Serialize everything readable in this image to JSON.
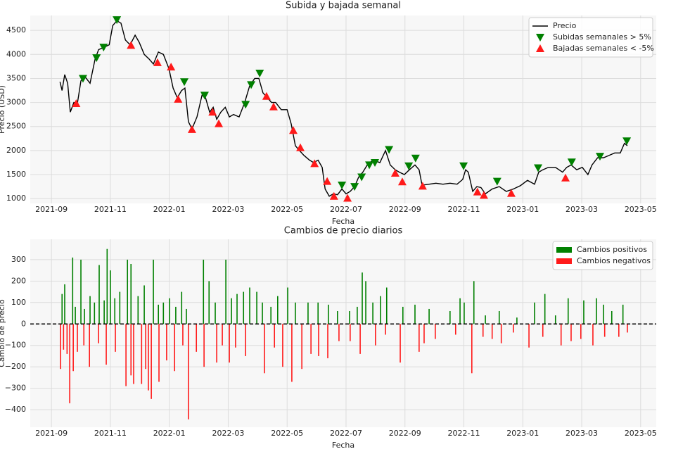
{
  "chart_data": [
    {
      "type": "line",
      "title": "Subida y bajada semanal",
      "xlabel": "Fecha",
      "ylabel": "Precio (USD)",
      "xlim": [
        -0.72,
        20.53
      ],
      "ylim": [
        900,
        4810
      ],
      "grid": true,
      "legend": "upper right",
      "xticks": [
        {
          "value": 0,
          "label": "2021-09"
        },
        {
          "value": 2,
          "label": "2021-11"
        },
        {
          "value": 4,
          "label": "2022-01"
        },
        {
          "value": 6,
          "label": "2022-03"
        },
        {
          "value": 8,
          "label": "2022-05"
        },
        {
          "value": 10,
          "label": "2022-07"
        },
        {
          "value": 12,
          "label": "2022-09"
        },
        {
          "value": 14,
          "label": "2022-11"
        },
        {
          "value": 16,
          "label": "2023-01"
        },
        {
          "value": 18,
          "label": "2023-03"
        },
        {
          "value": 20,
          "label": "2023-05"
        }
      ],
      "yticks": [
        1000,
        1500,
        2000,
        2500,
        3000,
        3500,
        4000,
        4500
      ],
      "series": [
        {
          "name": "Precio",
          "color": "#000000",
          "marker": "line",
          "x": [
            0.29,
            0.36,
            0.45,
            0.55,
            0.64,
            0.76,
            0.88,
            1.0,
            1.12,
            1.31,
            1.48,
            1.6,
            1.79,
            1.96,
            2.08,
            2.22,
            2.36,
            2.51,
            2.67,
            2.84,
            2.98,
            3.15,
            3.32,
            3.46,
            3.63,
            3.8,
            3.99,
            4.13,
            4.27,
            4.42,
            4.53,
            4.65,
            4.77,
            4.94,
            5.11,
            5.23,
            5.37,
            5.49,
            5.61,
            5.75,
            5.9,
            6.04,
            6.18,
            6.37,
            6.56,
            6.73,
            6.9,
            7.04,
            7.18,
            7.33,
            7.47,
            7.61,
            7.8,
            8.0,
            8.14,
            8.28,
            8.42,
            8.57,
            8.76,
            8.9,
            9.05,
            9.19,
            9.29,
            9.43,
            9.57,
            9.71,
            9.86,
            10.0,
            10.14,
            10.29,
            10.43,
            10.57,
            10.72,
            10.91,
            11.15,
            11.34,
            11.5,
            11.67,
            11.81,
            11.98,
            12.15,
            12.34,
            12.48,
            12.58,
            12.82,
            13.05,
            13.29,
            13.53,
            13.77,
            13.96,
            14.06,
            14.15,
            14.3,
            14.44,
            14.58,
            14.73,
            14.96,
            15.2,
            15.44,
            15.68,
            15.92,
            16.16,
            16.4,
            16.54,
            16.68,
            16.87,
            17.11,
            17.35,
            17.49,
            17.64,
            17.83,
            18.02,
            18.21,
            18.35,
            18.54,
            18.74,
            18.93,
            19.12,
            19.31,
            19.45,
            19.55
          ],
          "values": [
            3430,
            3250,
            3580,
            3400,
            2800,
            3000,
            2980,
            3450,
            3550,
            3400,
            3900,
            4100,
            4150,
            4200,
            4600,
            4700,
            4650,
            4300,
            4200,
            4400,
            4250,
            4000,
            3900,
            3800,
            4050,
            4000,
            3700,
            3300,
            3100,
            3250,
            3300,
            2600,
            2450,
            2700,
            3150,
            3100,
            2800,
            2900,
            2650,
            2800,
            2900,
            2700,
            2750,
            2700,
            3000,
            3350,
            3500,
            3500,
            3200,
            3100,
            3000,
            3000,
            2850,
            2850,
            2550,
            2100,
            2000,
            1900,
            1800,
            1750,
            1800,
            1650,
            1200,
            1050,
            1100,
            1080,
            1200,
            1100,
            1150,
            1250,
            1450,
            1550,
            1700,
            1800,
            1750,
            2000,
            1700,
            1600,
            1550,
            1500,
            1600,
            1700,
            1600,
            1280,
            1300,
            1320,
            1300,
            1320,
            1300,
            1400,
            1600,
            1550,
            1150,
            1250,
            1230,
            1100,
            1200,
            1250,
            1150,
            1200,
            1270,
            1380,
            1300,
            1550,
            1600,
            1650,
            1650,
            1550,
            1650,
            1700,
            1600,
            1650,
            1500,
            1700,
            1850,
            1850,
            1900,
            1950,
            1950,
            2150,
            2100
          ]
        },
        {
          "name": "Subidas semanales > 5%",
          "color": "#008000",
          "marker": "triangle-down",
          "x": [
            1.07,
            1.53,
            1.77,
            2.22,
            4.51,
            5.2,
            6.59,
            6.78,
            7.07,
            9.86,
            10.29,
            10.53,
            10.79,
            10.98,
            11.46,
            12.13,
            12.36,
            13.99,
            15.13,
            16.52,
            17.66,
            18.62,
            19.53
          ],
          "values": [
            3500,
            3930,
            4150,
            4720,
            3430,
            3150,
            2960,
            3370,
            3610,
            1280,
            1250,
            1450,
            1700,
            1750,
            2020,
            1680,
            1840,
            1680,
            1360,
            1640,
            1760,
            1880,
            2200
          ]
        },
        {
          "name": "Bajadas semanales < -5%",
          "color": "#ff1a1a",
          "marker": "triangle-up",
          "x": [
            0.84,
            2.7,
            3.6,
            4.06,
            4.3,
            4.77,
            5.47,
            5.68,
            7.3,
            7.54,
            8.21,
            8.45,
            8.93,
            9.36,
            9.59,
            10.05,
            11.67,
            11.91,
            12.6,
            14.46,
            14.68,
            15.61,
            17.45
          ],
          "values": [
            2980,
            4190,
            3830,
            3740,
            3070,
            2440,
            2800,
            2560,
            3130,
            2910,
            2420,
            2060,
            1730,
            1360,
            1050,
            1010,
            1530,
            1350,
            1260,
            1140,
            1070,
            1110,
            1430
          ]
        }
      ]
    },
    {
      "type": "bar",
      "title": "Cambios de precio diarios",
      "xlabel": "Fecha",
      "ylabel": "Cambio de precio",
      "xlim": [
        -0.72,
        20.53
      ],
      "ylim": [
        -482,
        395
      ],
      "grid": true,
      "legend": "upper right",
      "zero_line": 0,
      "xticks": [
        {
          "value": 0,
          "label": "2021-09"
        },
        {
          "value": 2,
          "label": "2021-11"
        },
        {
          "value": 4,
          "label": "2022-01"
        },
        {
          "value": 6,
          "label": "2022-03"
        },
        {
          "value": 8,
          "label": "2022-05"
        },
        {
          "value": 10,
          "label": "2022-07"
        },
        {
          "value": 12,
          "label": "2022-09"
        },
        {
          "value": 14,
          "label": "2022-11"
        },
        {
          "value": 16,
          "label": "2023-01"
        },
        {
          "value": 18,
          "label": "2023-03"
        },
        {
          "value": 20,
          "label": "2023-05"
        }
      ],
      "yticks": [
        {
          "value": -400,
          "label": "−400"
        },
        {
          "value": -300,
          "label": "−300"
        },
        {
          "value": -200,
          "label": "−200"
        },
        {
          "value": -100,
          "label": "−100"
        },
        0,
        100,
        200,
        300
      ],
      "series": [
        {
          "name": "Cambios positivos",
          "color": "#008000",
          "x": [
            0.36,
            0.45,
            0.72,
            0.81,
            1.0,
            1.12,
            1.31,
            1.46,
            1.62,
            1.79,
            1.89,
            2.0,
            2.15,
            2.32,
            2.58,
            2.7,
            2.94,
            3.15,
            3.46,
            3.63,
            3.8,
            4.01,
            4.22,
            4.42,
            4.58,
            5.16,
            5.35,
            5.56,
            5.92,
            6.11,
            6.3,
            6.52,
            6.73,
            6.97,
            7.16,
            7.45,
            7.68,
            8.02,
            8.28,
            8.71,
            9.05,
            9.4,
            9.71,
            10.12,
            10.38,
            10.55,
            10.67,
            10.91,
            11.17,
            11.38,
            11.93,
            12.34,
            12.82,
            13.53,
            13.87,
            14.01,
            14.34,
            14.73,
            15.2,
            15.8,
            16.4,
            16.75,
            17.11,
            17.54,
            18.07,
            18.5,
            18.74,
            19.02,
            19.4
          ],
          "values": [
            140,
            185,
            310,
            80,
            300,
            70,
            130,
            100,
            275,
            110,
            350,
            250,
            120,
            150,
            300,
            280,
            130,
            180,
            300,
            90,
            100,
            120,
            80,
            150,
            70,
            300,
            200,
            100,
            300,
            120,
            140,
            150,
            170,
            150,
            100,
            80,
            130,
            170,
            100,
            100,
            100,
            90,
            60,
            60,
            80,
            240,
            200,
            100,
            130,
            170,
            80,
            90,
            70,
            60,
            120,
            100,
            200,
            40,
            60,
            30,
            100,
            140,
            40,
            120,
            110,
            120,
            90,
            60,
            90
          ]
        },
        {
          "name": "Cambios negativos",
          "color": "#ff1a1a",
          "x": [
            0.31,
            0.41,
            0.53,
            0.62,
            0.74,
            0.88,
            1.1,
            1.29,
            1.6,
            1.86,
            2.17,
            2.53,
            2.7,
            2.79,
            3.06,
            3.2,
            3.29,
            3.39,
            3.65,
            3.91,
            4.18,
            4.46,
            4.65,
            4.92,
            5.18,
            5.61,
            5.8,
            6.04,
            6.25,
            6.59,
            7.23,
            7.57,
            7.85,
            8.16,
            8.5,
            8.81,
            9.07,
            9.38,
            9.76,
            10.14,
            10.48,
            11.0,
            11.34,
            11.84,
            12.48,
            12.65,
            13.03,
            13.72,
            14.27,
            14.65,
            14.96,
            15.27,
            15.68,
            16.21,
            16.68,
            17.3,
            17.64,
            17.97,
            18.38,
            18.78,
            19.26,
            19.55
          ],
          "values": [
            -210,
            -120,
            -140,
            -370,
            -220,
            -130,
            -100,
            -200,
            -90,
            -190,
            -130,
            -290,
            -240,
            -280,
            -280,
            -210,
            -310,
            -350,
            -270,
            -170,
            -220,
            -100,
            -445,
            -130,
            -200,
            -180,
            -100,
            -180,
            -110,
            -150,
            -230,
            -110,
            -200,
            -270,
            -210,
            -140,
            -150,
            -160,
            -80,
            -80,
            -140,
            -100,
            -50,
            -180,
            -130,
            -90,
            -70,
            -50,
            -230,
            -60,
            -70,
            -90,
            -40,
            -110,
            -60,
            -100,
            -80,
            -70,
            -100,
            -60,
            -60,
            -40
          ]
        }
      ]
    }
  ]
}
